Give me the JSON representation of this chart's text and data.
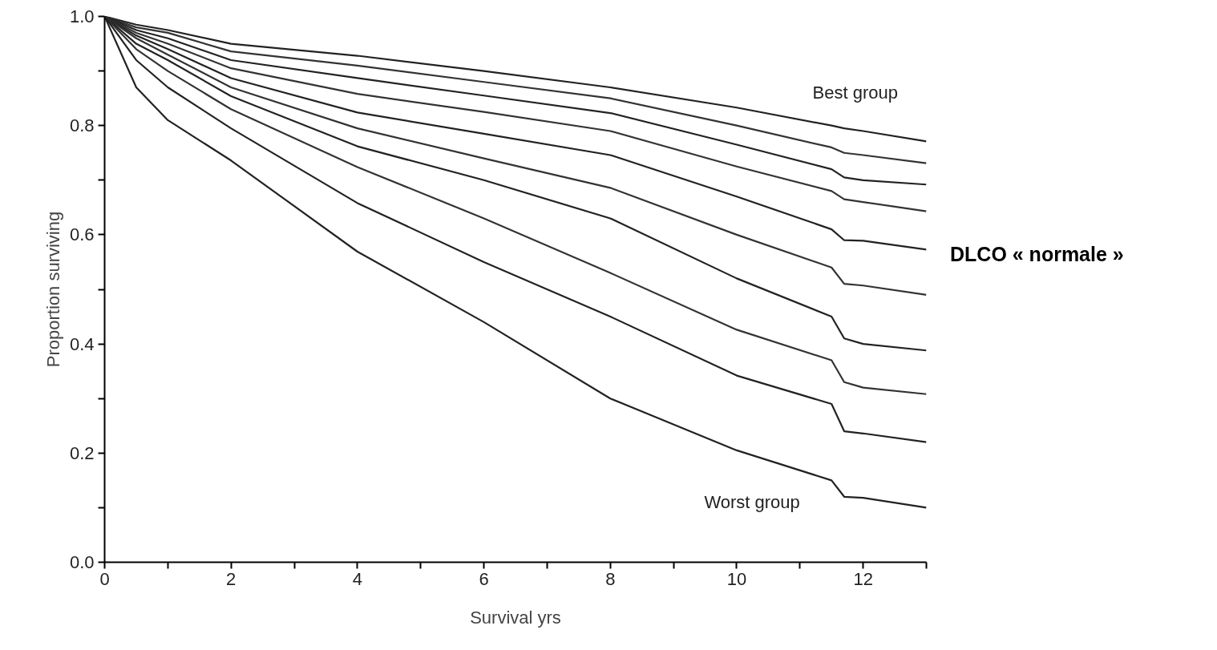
{
  "chart_data": {
    "type": "line",
    "xlabel": "Survival yrs",
    "ylabel": "Proportion surviving",
    "x": [
      0,
      0.5,
      1,
      2,
      4,
      6,
      8,
      10,
      11.5,
      11.7,
      12,
      13
    ],
    "series": [
      {
        "color": "#222222",
        "values": [
          1,
          0.985,
          0.975,
          0.95,
          0.928,
          0.9,
          0.87,
          0.833,
          0.8,
          0.795,
          0.79,
          0.771
        ]
      },
      {
        "color": "#333333",
        "values": [
          1,
          0.98,
          0.97,
          0.936,
          0.91,
          0.88,
          0.85,
          0.8,
          0.76,
          0.75,
          0.746,
          0.731
        ]
      },
      {
        "color": "#222222",
        "values": [
          1,
          0.975,
          0.96,
          0.92,
          0.887,
          0.855,
          0.823,
          0.765,
          0.72,
          0.705,
          0.7,
          0.692
        ]
      },
      {
        "color": "#333333",
        "values": [
          1,
          0.97,
          0.95,
          0.905,
          0.858,
          0.825,
          0.79,
          0.725,
          0.68,
          0.665,
          0.66,
          0.643
        ]
      },
      {
        "color": "#222222",
        "values": [
          1,
          0.965,
          0.94,
          0.887,
          0.824,
          0.785,
          0.746,
          0.67,
          0.61,
          0.59,
          0.589,
          0.573
        ]
      },
      {
        "color": "#333333",
        "values": [
          1,
          0.96,
          0.93,
          0.87,
          0.795,
          0.74,
          0.686,
          0.6,
          0.54,
          0.51,
          0.507,
          0.49
        ]
      },
      {
        "color": "#222222",
        "values": [
          1,
          0.95,
          0.92,
          0.854,
          0.762,
          0.7,
          0.63,
          0.52,
          0.45,
          0.41,
          0.4,
          0.388
        ]
      },
      {
        "color": "#333333",
        "values": [
          1,
          0.94,
          0.9,
          0.83,
          0.724,
          0.63,
          0.53,
          0.426,
          0.37,
          0.33,
          0.32,
          0.308
        ]
      },
      {
        "color": "#222222",
        "values": [
          1,
          0.92,
          0.87,
          0.795,
          0.658,
          0.55,
          0.45,
          0.342,
          0.29,
          0.24,
          0.236,
          0.22
        ]
      },
      {
        "color": "#222222",
        "values": [
          1,
          0.87,
          0.81,
          0.736,
          0.569,
          0.44,
          0.3,
          0.205,
          0.15,
          0.12,
          0.118,
          0.1
        ]
      }
    ],
    "xlim": [
      0,
      13
    ],
    "xticks": [
      0,
      {
        "value": 1,
        "label": null
      },
      2,
      {
        "value": 3,
        "label": null
      },
      4,
      {
        "value": 5,
        "label": null
      },
      6,
      {
        "value": 7,
        "label": null
      },
      8,
      {
        "value": 9,
        "label": null
      },
      10,
      {
        "value": 11,
        "label": null
      },
      12,
      {
        "value": 13,
        "label": null
      }
    ],
    "ylim": [
      0,
      1
    ],
    "yticks": [
      {
        "value": 0,
        "label": "0.0"
      },
      {
        "value": 0.1,
        "label": null
      },
      {
        "value": 0.2,
        "label": "0.2"
      },
      {
        "value": 0.3,
        "label": null
      },
      {
        "value": 0.4,
        "label": "0.4"
      },
      {
        "value": 0.5,
        "label": null
      },
      {
        "value": 0.6,
        "label": "0.6"
      },
      {
        "value": 0.7,
        "label": null
      },
      {
        "value": 0.8,
        "label": "0.8"
      },
      {
        "value": 0.9,
        "label": null
      },
      {
        "value": 1,
        "label": "1.0"
      }
    ],
    "annotations": [
      "Best group",
      "Worst group",
      "DLCO « normale »"
    ],
    "grid": false,
    "line_style": "solid",
    "marker": "none"
  }
}
